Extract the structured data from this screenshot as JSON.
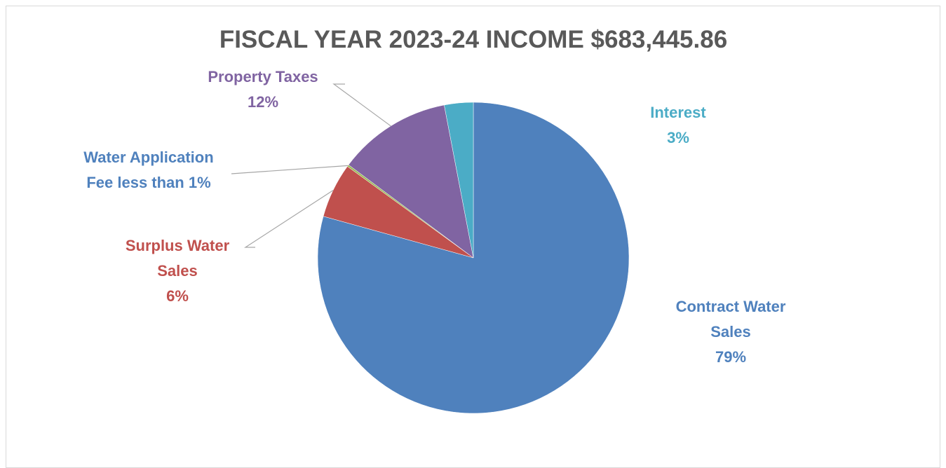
{
  "chart_data": {
    "type": "pie",
    "title": "FISCAL YEAR 2023-24 INCOME $683,445.86",
    "start_angle_deg": 0,
    "direction": "clockwise",
    "slices": [
      {
        "name": "Contract Water Sales",
        "label_lines": [
          "Contract Water",
          "Sales"
        ],
        "value_label": "79%",
        "value": 79.3,
        "color": "#4F81BD"
      },
      {
        "name": "Surplus Water Sales",
        "label_lines": [
          "Surplus Water",
          "Sales"
        ],
        "value_label": "6%",
        "value": 5.7,
        "color": "#C0504D"
      },
      {
        "name": "Water Application Fee",
        "label_lines": [
          "Water Application",
          "Fee less than 1%"
        ],
        "value_label": "",
        "value": 0.2,
        "color": "#9BBB59"
      },
      {
        "name": "Property Taxes",
        "label_lines": [
          "Property Taxes"
        ],
        "value_label": "12%",
        "value": 11.8,
        "color": "#8064A2"
      },
      {
        "name": "Interest",
        "label_lines": [
          "Interest"
        ],
        "value_label": "3%",
        "value": 3.0,
        "color": "#4BACC6"
      }
    ]
  }
}
